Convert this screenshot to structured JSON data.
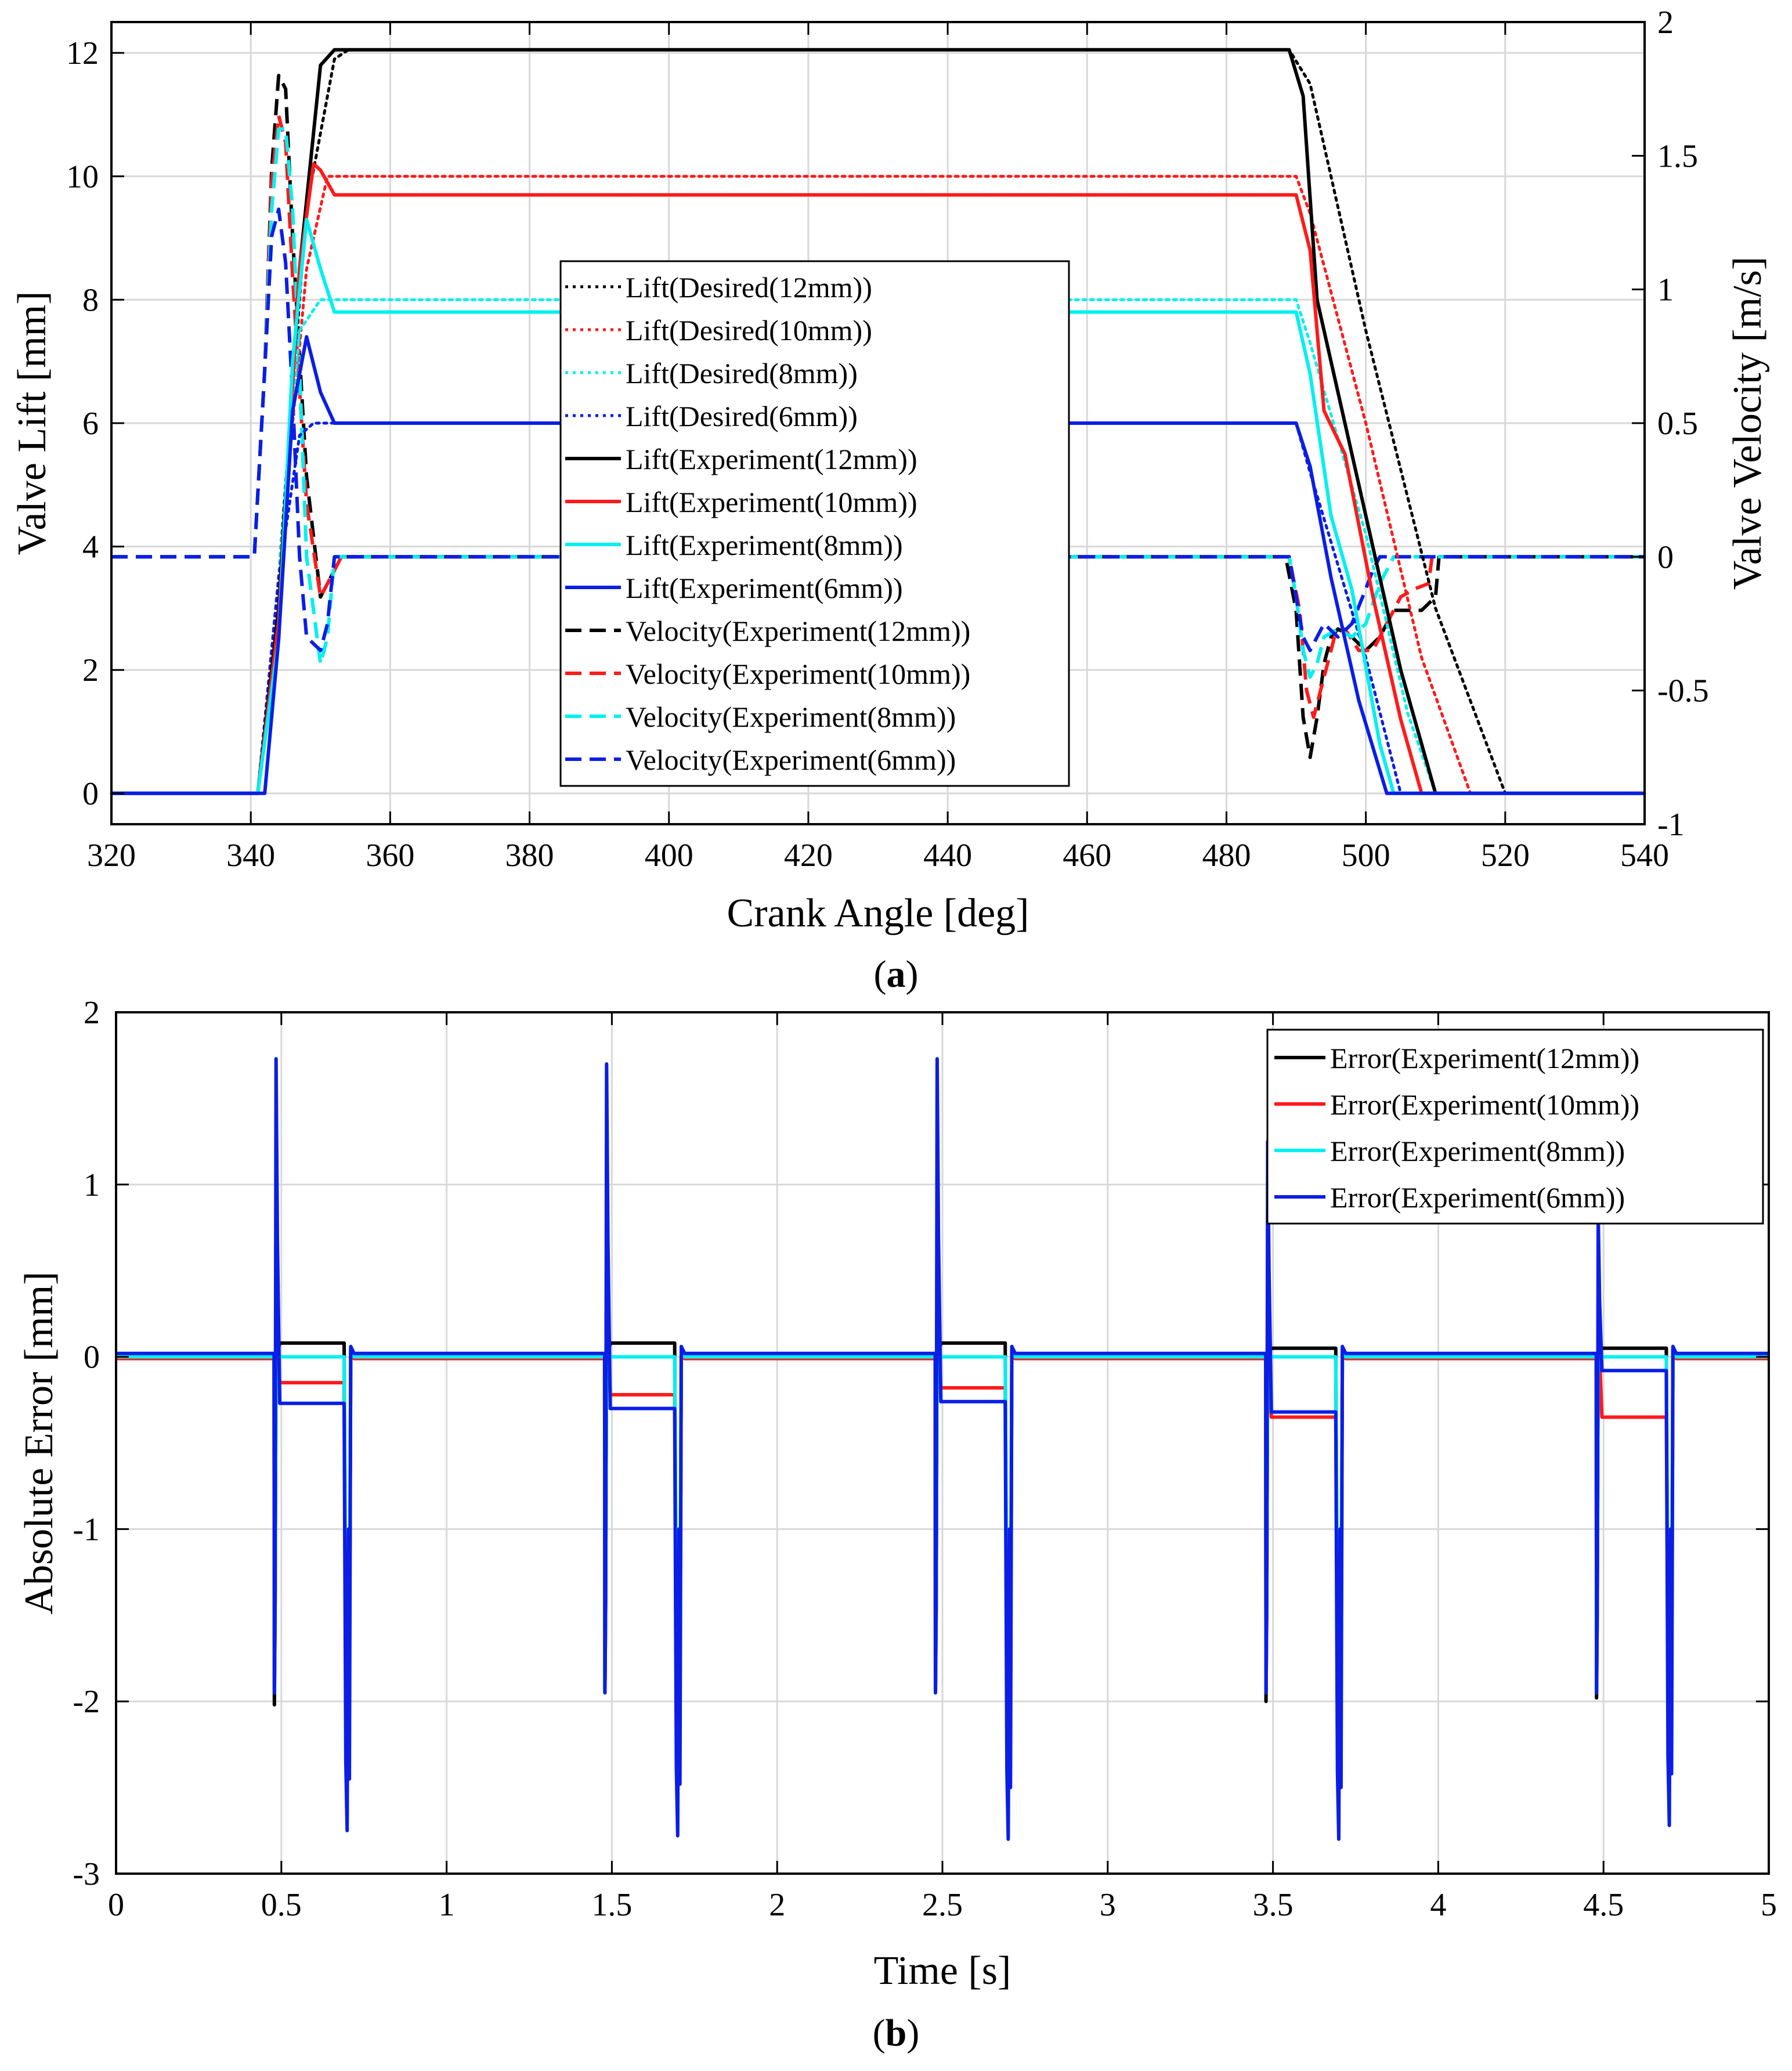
{
  "chart_data": [
    {
      "id": "a",
      "type": "line",
      "caption_prefix": "(",
      "caption_letter": "a",
      "caption_suffix": ")",
      "xlabel": "Crank Angle [deg]",
      "ylabel": "Valve Lift [mm]",
      "ylabel_right": "Valve Velocity [m/s]",
      "xlim": [
        320,
        540
      ],
      "ylim": [
        -0.5,
        12.5
      ],
      "ylim_right": [
        -1,
        2
      ],
      "xticks": [
        "320",
        "340",
        "360",
        "380",
        "400",
        "420",
        "440",
        "460",
        "480",
        "500",
        "520",
        "540"
      ],
      "yticks": [
        "0",
        "2",
        "4",
        "6",
        "8",
        "10",
        "12"
      ],
      "yticks_right": [
        "-1",
        "-0.5",
        "0",
        "0.5",
        "1",
        "1.5",
        "2"
      ],
      "grid": true,
      "legend_position": "center",
      "colors": {
        "black": "#000000",
        "red": "#ff1a1a",
        "cyan": "#00f0f0",
        "blue": "#0a1ee6"
      },
      "series": [
        {
          "name": "Lift(Desired(12mm))",
          "style": "dotted",
          "color": "#000000",
          "axis": "left",
          "x": [
            320,
            341,
            344,
            348,
            352,
            354,
            489,
            492,
            500,
            510,
            520,
            540
          ],
          "y": [
            0,
            0,
            3.5,
            9.5,
            11.9,
            12.05,
            12.05,
            11.5,
            7.5,
            3,
            0,
            0
          ]
        },
        {
          "name": "Lift(Desired(10mm))",
          "style": "dotted",
          "color": "#ff1a1a",
          "axis": "left",
          "x": [
            320,
            341,
            344,
            348,
            351,
            490,
            492,
            500,
            508,
            515,
            540
          ],
          "y": [
            0,
            0,
            3.5,
            8.5,
            10,
            10,
            9.4,
            6,
            2.2,
            0,
            0
          ]
        },
        {
          "name": "Lift(Desired(8mm))",
          "style": "dotted",
          "color": "#00f0f0",
          "axis": "left",
          "x": [
            320,
            341,
            344,
            347,
            350,
            490,
            492,
            500,
            506,
            510,
            540
          ],
          "y": [
            0,
            0,
            3.5,
            7.5,
            8,
            8,
            7.3,
            4.2,
            1.3,
            0,
            0
          ]
        },
        {
          "name": "Lift(Desired(6mm))",
          "style": "dotted",
          "color": "#0a1ee6",
          "axis": "left",
          "x": [
            320,
            341,
            344,
            347,
            349,
            490,
            492,
            500,
            505,
            540
          ],
          "y": [
            0,
            0,
            3.5,
            5.8,
            6,
            6,
            5.2,
            2.2,
            0,
            0
          ]
        },
        {
          "name": "Lift(Experiment(12mm))",
          "style": "solid",
          "color": "#000000",
          "axis": "left",
          "x": [
            320,
            341,
            344,
            347,
            350,
            352,
            489,
            491,
            493,
            497,
            501,
            505,
            510,
            540
          ],
          "y": [
            0,
            0,
            3,
            8.5,
            11.8,
            12.05,
            12.05,
            11.3,
            8,
            6,
            4,
            2,
            0,
            0
          ]
        },
        {
          "name": "Lift(Experiment(10mm))",
          "style": "solid",
          "color": "#ff1a1a",
          "axis": "left",
          "x": [
            320,
            341,
            344,
            347,
            349,
            350,
            352,
            490,
            492,
            494,
            497,
            501,
            505,
            508,
            540
          ],
          "y": [
            0,
            0,
            2.8,
            8.5,
            10.2,
            10.1,
            9.7,
            9.7,
            8.8,
            6.2,
            5.5,
            3.2,
            1.2,
            0,
            0
          ]
        },
        {
          "name": "Lift(Experiment(8mm))",
          "style": "solid",
          "color": "#00f0f0",
          "axis": "left",
          "x": [
            320,
            341,
            344,
            346,
            348,
            350,
            352,
            490,
            492,
            495,
            498,
            502,
            504,
            540
          ],
          "y": [
            0,
            0,
            2.5,
            7,
            9.3,
            8.5,
            7.8,
            7.8,
            6.8,
            4.5,
            3.3,
            0.8,
            0,
            0
          ]
        },
        {
          "name": "Lift(Experiment(6mm))",
          "style": "solid",
          "color": "#0a1ee6",
          "axis": "left",
          "x": [
            320,
            342,
            344,
            346,
            348,
            350,
            352,
            490,
            492,
            495,
            499,
            503,
            540
          ],
          "y": [
            0,
            0,
            2.5,
            6.2,
            7.4,
            6.5,
            6,
            6,
            5.3,
            3.5,
            1.5,
            0,
            0
          ]
        },
        {
          "name": "Velocity(Experiment(12mm))",
          "style": "dashed",
          "color": "#000000",
          "axis": "right",
          "x": [
            320,
            340.5,
            342,
            343,
            344,
            345,
            346,
            348,
            350,
            352,
            353,
            488.5,
            490,
            491,
            492,
            493,
            494,
            495,
            496,
            498,
            500,
            502,
            504,
            506,
            508,
            510,
            510.5,
            540
          ],
          "y": [
            0,
            0,
            0.7,
            1.45,
            1.8,
            1.75,
            1.2,
            0.3,
            -0.15,
            -0.05,
            0,
            0,
            -0.2,
            -0.6,
            -0.75,
            -0.6,
            -0.4,
            -0.3,
            -0.27,
            -0.3,
            -0.35,
            -0.3,
            -0.2,
            -0.2,
            -0.2,
            -0.15,
            0,
            0
          ]
        },
        {
          "name": "Velocity(Experiment(10mm))",
          "style": "dashed",
          "color": "#ff1a1a",
          "axis": "right",
          "x": [
            320,
            340.5,
            342,
            343,
            344,
            345,
            346,
            348,
            350,
            352,
            353,
            489,
            490.5,
            491.5,
            492.5,
            494,
            495.5,
            497,
            499,
            501,
            503,
            505,
            507,
            509,
            509.5,
            540
          ],
          "y": [
            0,
            0,
            0.7,
            1.4,
            1.65,
            1.55,
            1.05,
            0.2,
            -0.15,
            -0.05,
            0,
            0,
            -0.2,
            -0.5,
            -0.6,
            -0.45,
            -0.3,
            -0.27,
            -0.35,
            -0.35,
            -0.25,
            -0.15,
            -0.12,
            -0.1,
            0,
            0
          ]
        },
        {
          "name": "Velocity(Experiment(8mm))",
          "style": "dashed",
          "color": "#00f0f0",
          "axis": "right",
          "x": [
            320,
            340.5,
            342,
            343,
            344,
            345,
            346,
            347,
            348,
            350,
            351,
            352,
            489,
            490,
            491,
            492,
            493,
            494,
            496,
            498,
            500,
            502,
            503,
            504,
            540
          ],
          "y": [
            0,
            0,
            0.7,
            1.3,
            1.6,
            1.6,
            1.3,
            0.7,
            0,
            -0.4,
            -0.3,
            0,
            0,
            -0.15,
            -0.35,
            -0.45,
            -0.4,
            -0.3,
            -0.27,
            -0.3,
            -0.25,
            -0.1,
            -0.05,
            0,
            0
          ]
        },
        {
          "name": "Velocity(Experiment(6mm))",
          "style": "dashed",
          "color": "#0a1ee6",
          "axis": "right",
          "x": [
            320,
            340.5,
            342,
            343,
            344,
            345,
            346,
            347,
            348,
            350,
            351,
            352,
            489,
            490,
            491,
            492,
            493,
            494,
            496,
            498,
            500,
            501,
            502,
            540
          ],
          "y": [
            0,
            0,
            0.7,
            1.2,
            1.3,
            1.1,
            0.6,
            0,
            -0.3,
            -0.35,
            -0.25,
            0,
            0,
            -0.15,
            -0.3,
            -0.35,
            -0.3,
            -0.25,
            -0.3,
            -0.25,
            -0.12,
            -0.05,
            0,
            0
          ]
        }
      ]
    },
    {
      "id": "b",
      "type": "line",
      "caption_prefix": "(",
      "caption_letter": "b",
      "caption_suffix": ")",
      "xlabel": "Time [s]",
      "ylabel": "Absolute Error [mm]",
      "xlim": [
        0,
        5
      ],
      "ylim": [
        -3,
        2
      ],
      "xticks": [
        "0",
        "0.5",
        "1",
        "1.5",
        "2",
        "2.5",
        "3",
        "3.5",
        "4",
        "4.5",
        "5"
      ],
      "yticks": [
        "-3",
        "-2",
        "-1",
        "0",
        "1",
        "2"
      ],
      "grid": true,
      "legend_position": "top-right",
      "cycle_period_s": 1,
      "cycle_count": 5,
      "series": [
        {
          "name": "Error(Experiment(12mm))",
          "color": "#000000",
          "plateau": [
            0.08,
            0.08,
            0.08,
            0.05,
            0.05
          ],
          "spike_up": [
            0.05,
            0.05,
            0.05,
            0.05,
            0.05
          ],
          "spike_down1": [
            -2.02,
            -1.95,
            -1.95,
            -2.0,
            -1.98
          ],
          "spike_down2": [
            -2.3,
            -2.3,
            -2.3,
            -2.35,
            -2.3
          ]
        },
        {
          "name": "Error(Experiment(10mm))",
          "color": "#ff1a1a",
          "plateau": [
            -0.15,
            -0.22,
            -0.18,
            -0.35,
            -0.35
          ],
          "spike_up": [
            0.05,
            0.05,
            0.05,
            0.05,
            0.05
          ],
          "spike_down1": [
            -1.95,
            -1.95,
            -1.95,
            -1.95,
            -1.85
          ],
          "spike_down2": [
            -2.2,
            -2.2,
            -2.2,
            -2.2,
            -2.15
          ]
        },
        {
          "name": "Error(Experiment(8mm))",
          "color": "#00f0f0",
          "plateau": [
            0,
            0,
            0,
            0,
            0
          ],
          "spike_up": [
            0.05,
            0.05,
            0.05,
            0.05,
            0.05
          ],
          "spike_down1": [
            -1.95,
            -1.95,
            -1.95,
            -1.95,
            -1.95
          ],
          "spike_down2": [
            -1.9,
            -1.9,
            -1.9,
            -1.9,
            -1.9
          ]
        },
        {
          "name": "Error(Experiment(6mm))",
          "color": "#0a1ee6",
          "plateau": [
            -0.27,
            -0.3,
            -0.26,
            -0.32,
            -0.08
          ],
          "spike_up": [
            1.73,
            1.7,
            1.73,
            1.25,
            0.82
          ],
          "spike_down1": [
            -1.95,
            -1.95,
            -1.95,
            -1.95,
            -1.95
          ],
          "spike_down2": [
            -2.75,
            -2.78,
            -2.8,
            -2.8,
            -2.72
          ]
        }
      ]
    }
  ]
}
